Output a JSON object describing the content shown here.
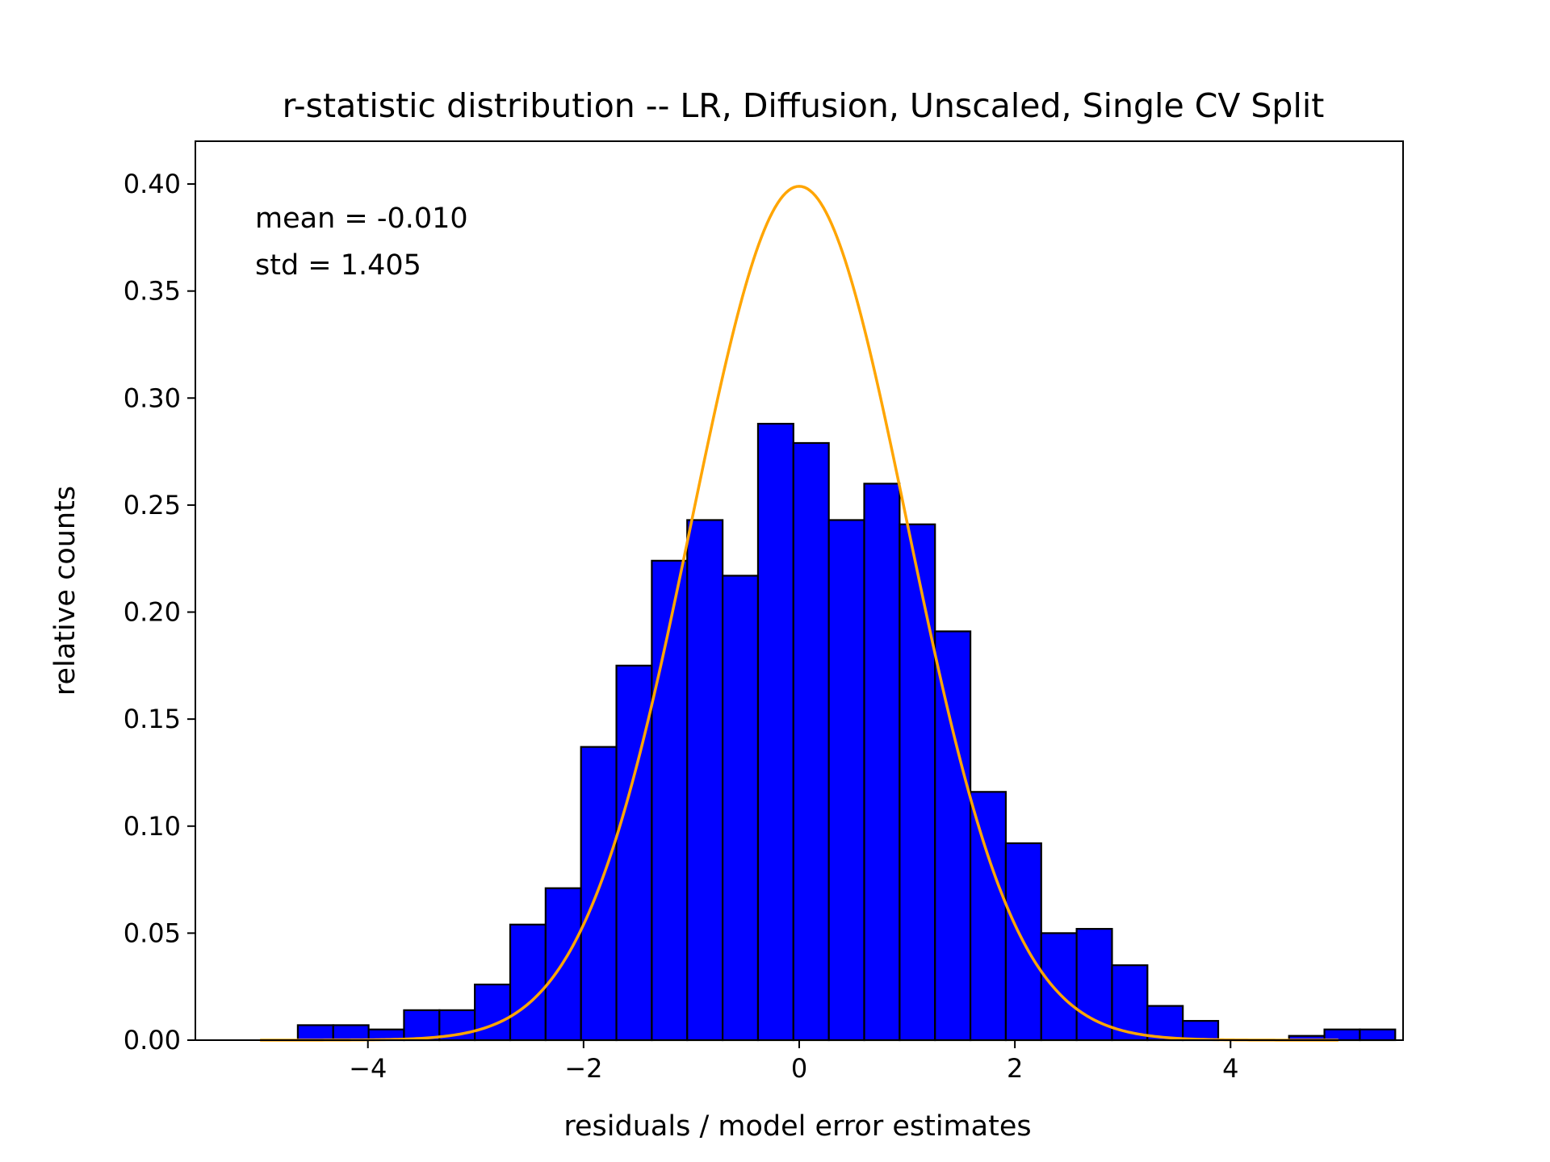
{
  "chart_data": {
    "type": "bar",
    "title": "r-statistic distribution -- LR, Diffusion, Unscaled, Single CV Split",
    "xlabel": "residuals / model error estimates",
    "ylabel": "relative counts",
    "xlim": [
      -5.6,
      5.6
    ],
    "ylim": [
      0,
      0.42
    ],
    "x_ticks": [
      -4,
      -2,
      0,
      2,
      4
    ],
    "x_tick_labels": [
      "−4",
      "−2",
      "0",
      "2",
      "4"
    ],
    "y_ticks": [
      0.0,
      0.05,
      0.1,
      0.15,
      0.2,
      0.25,
      0.3,
      0.35,
      0.4
    ],
    "y_tick_labels": [
      "0.00",
      "0.05",
      "0.10",
      "0.15",
      "0.20",
      "0.25",
      "0.30",
      "0.35",
      "0.40"
    ],
    "grid": false,
    "bar_color": "#0000ff",
    "edge_color": "#000000",
    "curve_color": "#ffa500",
    "bins": {
      "start": -4.65,
      "width": 0.3283,
      "values": [
        0.007,
        0.007,
        0.005,
        0.014,
        0.014,
        0.026,
        0.054,
        0.071,
        0.137,
        0.175,
        0.224,
        0.243,
        0.217,
        0.288,
        0.279,
        0.243,
        0.26,
        0.241,
        0.191,
        0.116,
        0.092,
        0.05,
        0.052,
        0.035,
        0.016,
        0.009,
        0.0,
        0.0,
        0.002,
        0.005,
        0.005
      ]
    },
    "curve": {
      "type": "normal-pdf",
      "mean": 0,
      "std": 1,
      "x_range": [
        -5,
        5
      ]
    },
    "annotations": {
      "mean": "mean = -0.010",
      "std": "std = 1.405"
    }
  }
}
